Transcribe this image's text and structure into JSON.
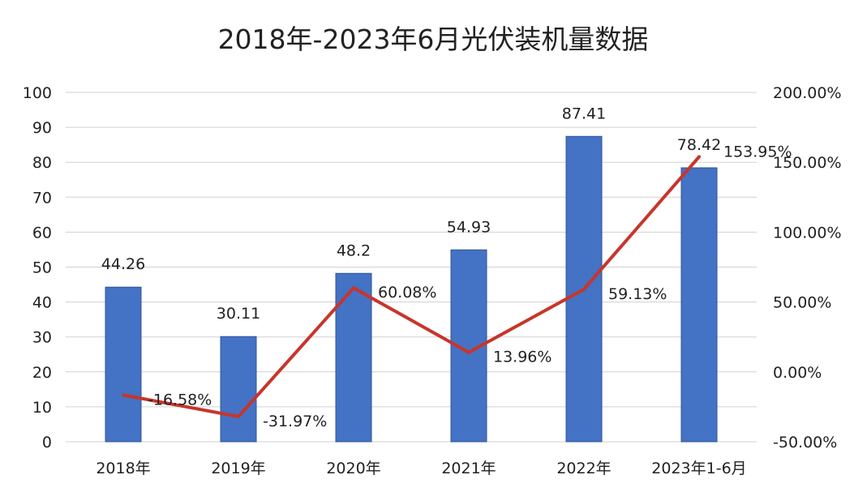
{
  "chart_data": {
    "type": "bar+line",
    "title": "2018年-2023年6月光伏装机量数据",
    "categories": [
      "2018年",
      "2019年",
      "2020年",
      "2021年",
      "2022年",
      "2023年1-6月"
    ],
    "series": [
      {
        "type": "bar",
        "axis": "left",
        "values": [
          44.26,
          30.11,
          48.2,
          54.93,
          87.41,
          78.42
        ],
        "labels": [
          "44.26",
          "30.11",
          "48.2",
          "54.93",
          "87.41",
          "78.42"
        ],
        "color": "#4472c4"
      },
      {
        "type": "line",
        "axis": "right",
        "values": [
          -16.58,
          -31.97,
          60.08,
          13.96,
          59.13,
          153.95
        ],
        "labels": [
          "-16.58%",
          "-31.97%",
          "60.08%",
          "13.96%",
          "59.13%",
          "153.95%"
        ],
        "color": "#c8352b"
      }
    ],
    "left_axis": {
      "ylim": [
        0,
        100
      ],
      "ticks": [
        "0",
        "10",
        "20",
        "30",
        "40",
        "50",
        "60",
        "70",
        "80",
        "90",
        "100"
      ]
    },
    "right_axis": {
      "ylim": [
        -50,
        200
      ],
      "ticks": [
        "-50.00%",
        "0.00%",
        "50.00%",
        "100.00%",
        "150.00%",
        "200.00%"
      ]
    },
    "grid": true,
    "legend": "none"
  }
}
